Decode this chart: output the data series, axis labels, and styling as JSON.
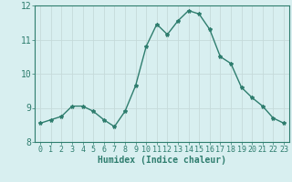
{
  "x": [
    0,
    1,
    2,
    3,
    4,
    5,
    6,
    7,
    8,
    9,
    10,
    11,
    12,
    13,
    14,
    15,
    16,
    17,
    18,
    19,
    20,
    21,
    22,
    23
  ],
  "y": [
    8.55,
    8.65,
    8.75,
    9.05,
    9.05,
    8.9,
    8.65,
    8.45,
    8.9,
    9.65,
    10.8,
    11.45,
    11.15,
    11.55,
    11.85,
    11.75,
    11.3,
    10.5,
    10.3,
    9.6,
    9.3,
    9.05,
    8.7,
    8.55
  ],
  "line_color": "#2e7d6e",
  "marker": "*",
  "marker_size": 3,
  "bg_color": "#d8eff0",
  "grid_color": "#c5dada",
  "xlabel": "Humidex (Indice chaleur)",
  "ylim": [
    8,
    12
  ],
  "xlim": [
    -0.5,
    23.5
  ],
  "yticks": [
    8,
    9,
    10,
    11,
    12
  ],
  "xticks": [
    0,
    1,
    2,
    3,
    4,
    5,
    6,
    7,
    8,
    9,
    10,
    11,
    12,
    13,
    14,
    15,
    16,
    17,
    18,
    19,
    20,
    21,
    22,
    23
  ],
  "tick_color": "#2e7d6e",
  "label_color": "#2e7d6e",
  "xlabel_fontsize": 7,
  "tick_fontsize": 6
}
